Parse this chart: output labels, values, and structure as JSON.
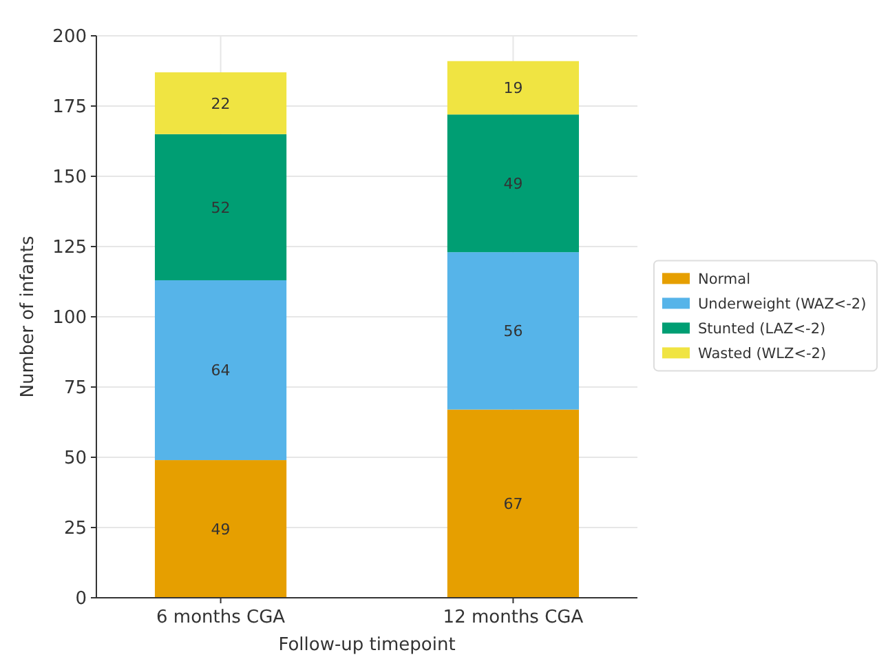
{
  "chart_data": {
    "type": "bar",
    "stacked": true,
    "xlabel": "Follow-up timepoint",
    "ylabel": "Number of infants",
    "categories": [
      "6 months CGA",
      "12 months CGA"
    ],
    "series": [
      {
        "name": "Normal",
        "color": "#e69f00",
        "values": [
          49,
          67
        ]
      },
      {
        "name": "Underweight (WAZ<-2)",
        "color": "#56b4e9",
        "values": [
          64,
          56
        ]
      },
      {
        "name": "Stunted (LAZ<-2)",
        "color": "#009e73",
        "values": [
          52,
          49
        ]
      },
      {
        "name": "Wasted (WLZ<-2)",
        "color": "#f0e442",
        "values": [
          22,
          19
        ]
      }
    ],
    "ylim": [
      0,
      200
    ],
    "yticks": [
      0,
      25,
      50,
      75,
      100,
      125,
      150,
      175,
      200
    ],
    "grid": true,
    "legend": "right",
    "data_labels": true
  }
}
